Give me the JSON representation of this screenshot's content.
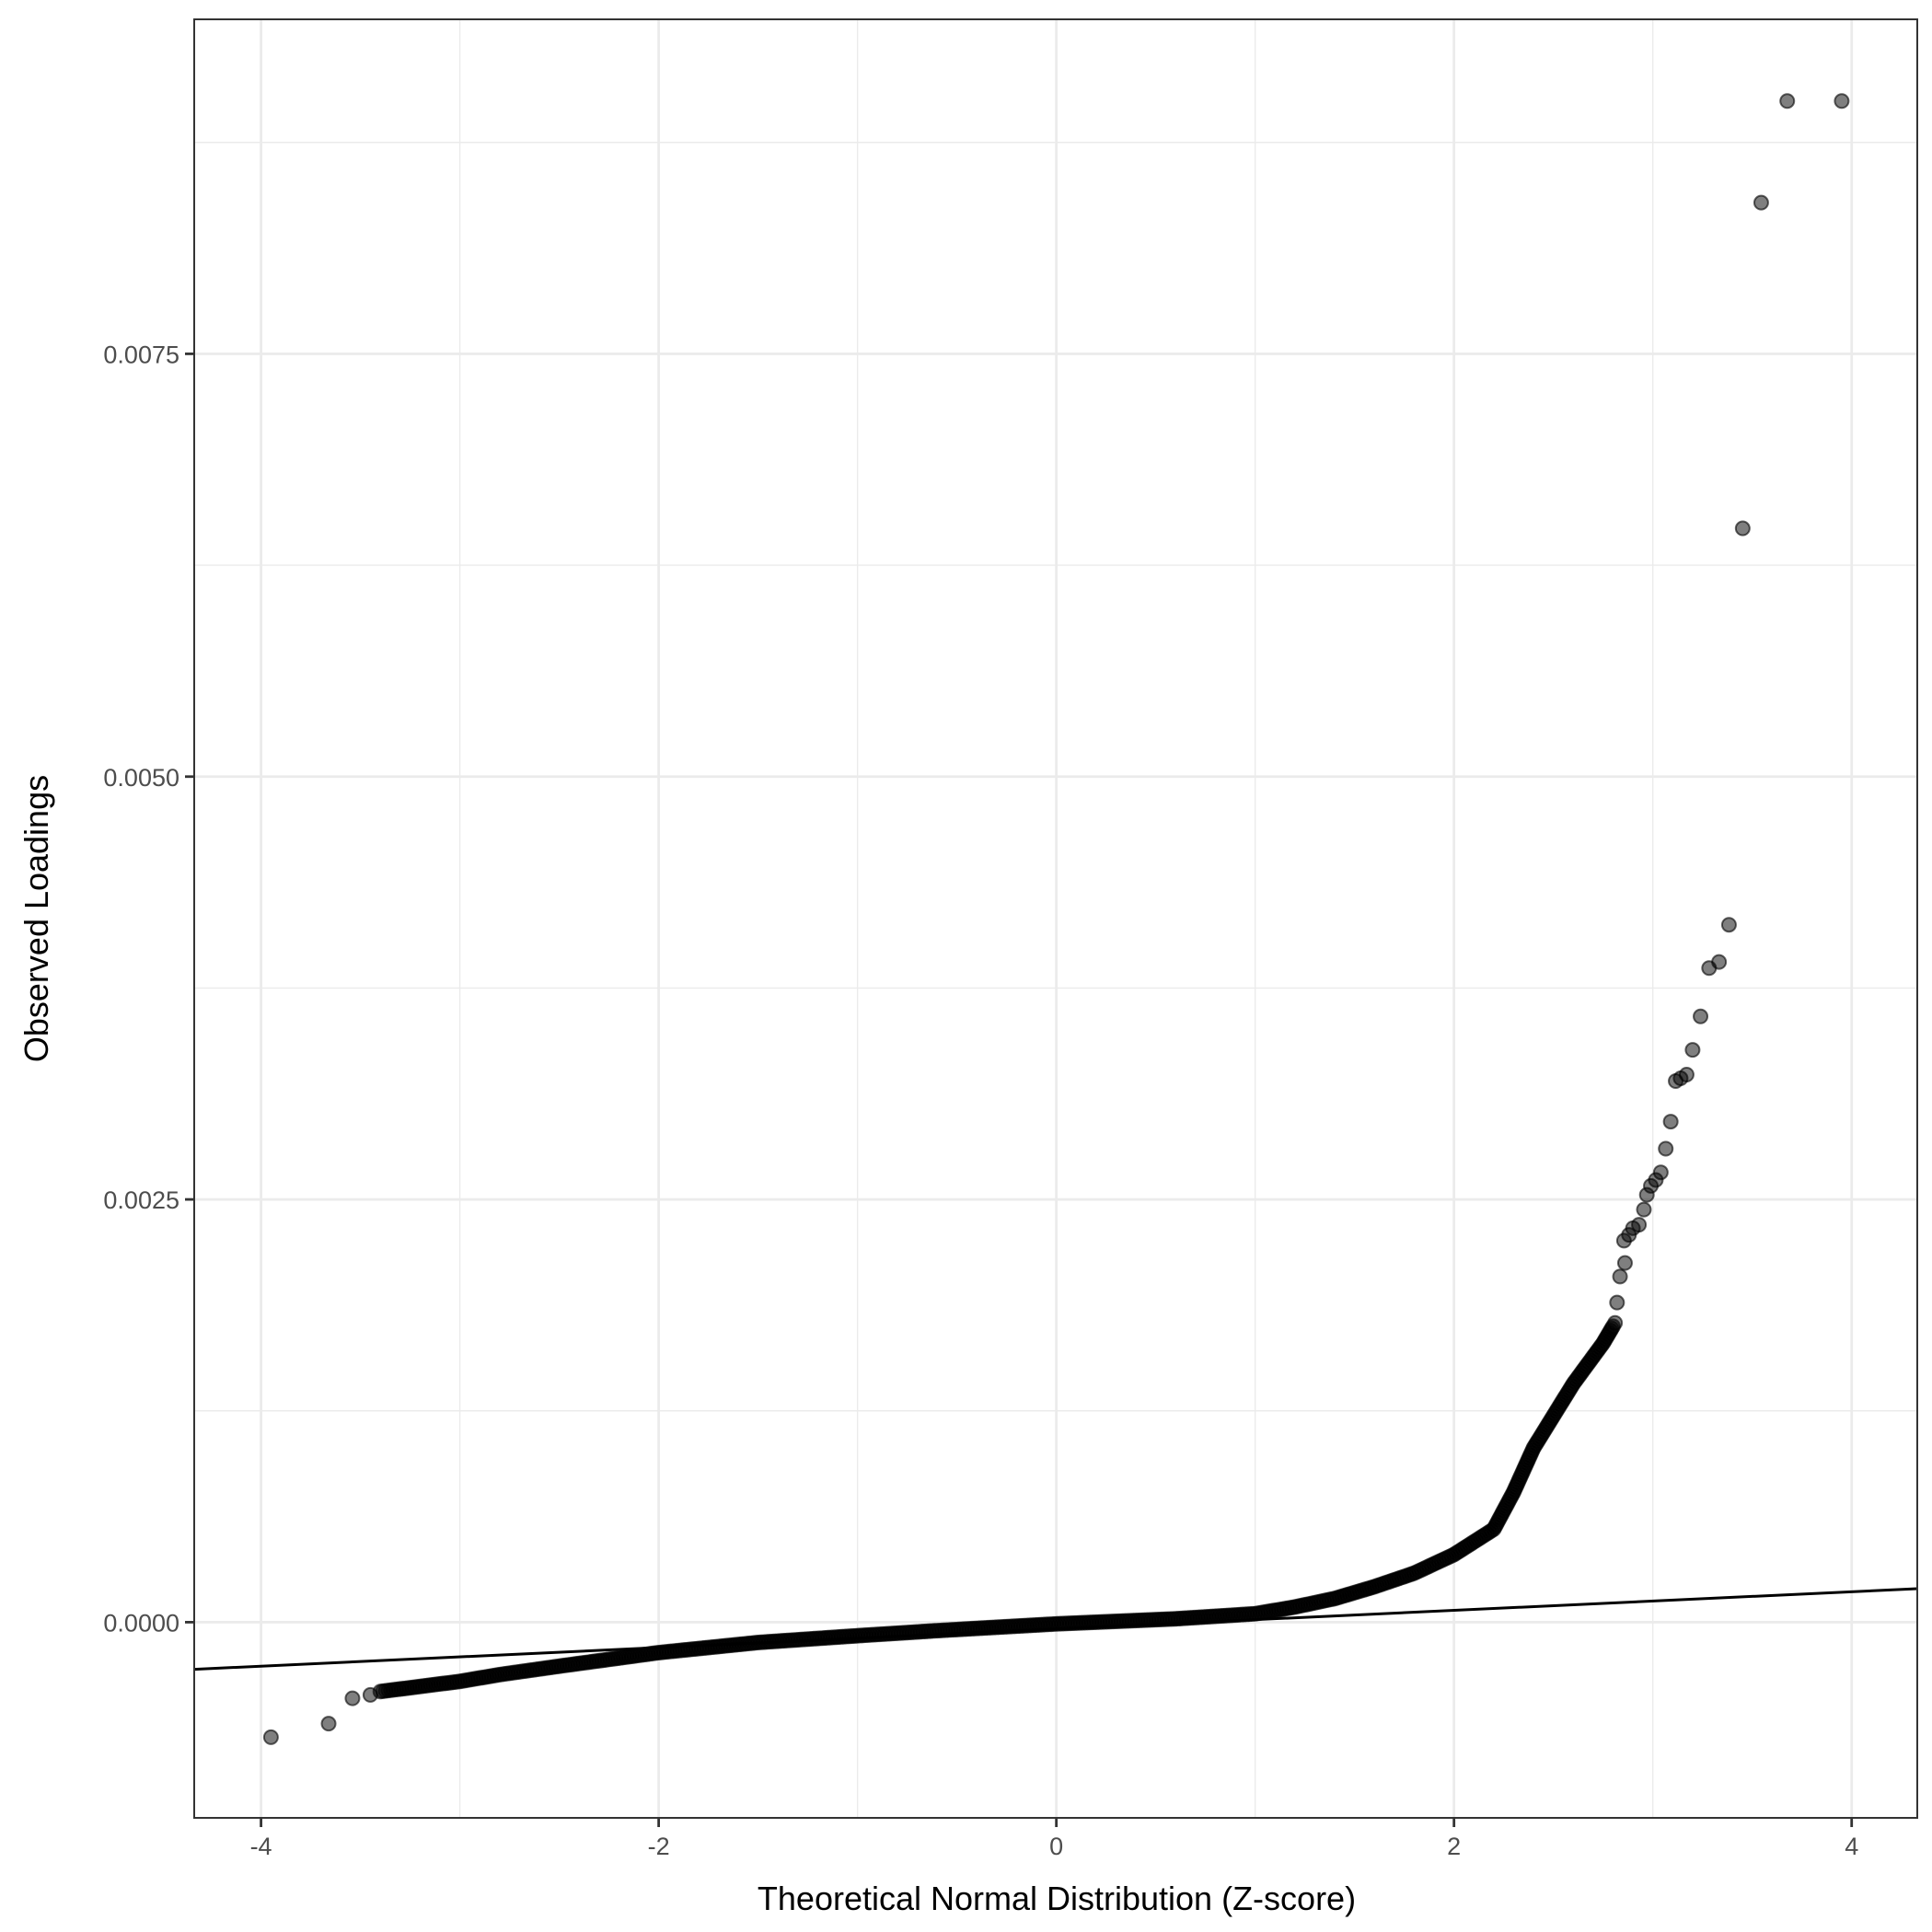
{
  "chart_data": {
    "type": "scatter",
    "title": "",
    "xlabel": "Theoretical Normal Distribution (Z-score)",
    "ylabel": "Observed Loadings",
    "xlim": [
      -4.336,
      4.33
    ],
    "ylim": [
      -0.001157,
      0.009478
    ],
    "grid": true,
    "x_ticks": [
      -4,
      -2,
      0,
      2,
      4
    ],
    "x_tick_labels": [
      "-4",
      "-2",
      "0",
      "2",
      "4"
    ],
    "y_ticks": [
      0,
      0.0025,
      0.005,
      0.0075
    ],
    "y_tick_labels": [
      "0.0000",
      "0.0025",
      "0.0050",
      "0.0075"
    ],
    "reference_line": {
      "intercept": -4e-05,
      "slope": 5.5e-05
    },
    "dense_curve": [
      [
        -3.4,
        -0.00041
      ],
      [
        -3.2,
        -0.00038
      ],
      [
        -3.0,
        -0.00035
      ],
      [
        -2.8,
        -0.00031
      ],
      [
        -2.5,
        -0.00026
      ],
      [
        -2.0,
        -0.00018
      ],
      [
        -1.5,
        -0.00012
      ],
      [
        -1.0,
        -8e-05
      ],
      [
        -0.6,
        -5e-05
      ],
      [
        0.0,
        -1e-05
      ],
      [
        0.6,
        2e-05
      ],
      [
        1.0,
        5e-05
      ],
      [
        1.2,
        9e-05
      ],
      [
        1.4,
        0.00014
      ],
      [
        1.6,
        0.00021
      ],
      [
        1.8,
        0.00029
      ],
      [
        2.0,
        0.0004
      ],
      [
        2.2,
        0.00055
      ],
      [
        2.3,
        0.00077
      ],
      [
        2.4,
        0.00103
      ],
      [
        2.6,
        0.00141
      ],
      [
        2.75,
        0.00165
      ],
      [
        2.8,
        0.00175
      ]
    ],
    "points": [
      [
        -3.95,
        -0.00068
      ],
      [
        -3.66,
        -0.0006
      ],
      [
        -3.54,
        -0.00045
      ],
      [
        -3.45,
        -0.00043
      ],
      [
        2.81,
        0.00177
      ],
      [
        2.82,
        0.00189
      ],
      [
        2.835,
        0.002044
      ],
      [
        2.86,
        0.002124
      ],
      [
        2.855,
        0.002256
      ],
      [
        2.88,
        0.00229
      ],
      [
        2.9,
        0.00233
      ],
      [
        2.93,
        0.00235
      ],
      [
        2.955,
        0.00244
      ],
      [
        2.97,
        0.002527
      ],
      [
        2.99,
        0.00258
      ],
      [
        3.015,
        0.002615
      ],
      [
        3.04,
        0.00266
      ],
      [
        3.065,
        0.0028
      ],
      [
        3.09,
        0.00296
      ],
      [
        3.115,
        0.0032
      ],
      [
        3.14,
        0.003216
      ],
      [
        3.17,
        0.003238
      ],
      [
        3.2,
        0.003384
      ],
      [
        3.24,
        0.003582
      ],
      [
        3.283,
        0.003868
      ],
      [
        3.333,
        0.003904
      ],
      [
        3.383,
        0.004124
      ],
      [
        3.452,
        0.006468
      ],
      [
        3.545,
        0.008394
      ],
      [
        3.676,
        0.008995
      ],
      [
        3.95,
        0.008995
      ]
    ],
    "colors": {
      "point": "#000000",
      "grid": "#ebebeb",
      "axis_text": "#4d4d4d"
    }
  }
}
